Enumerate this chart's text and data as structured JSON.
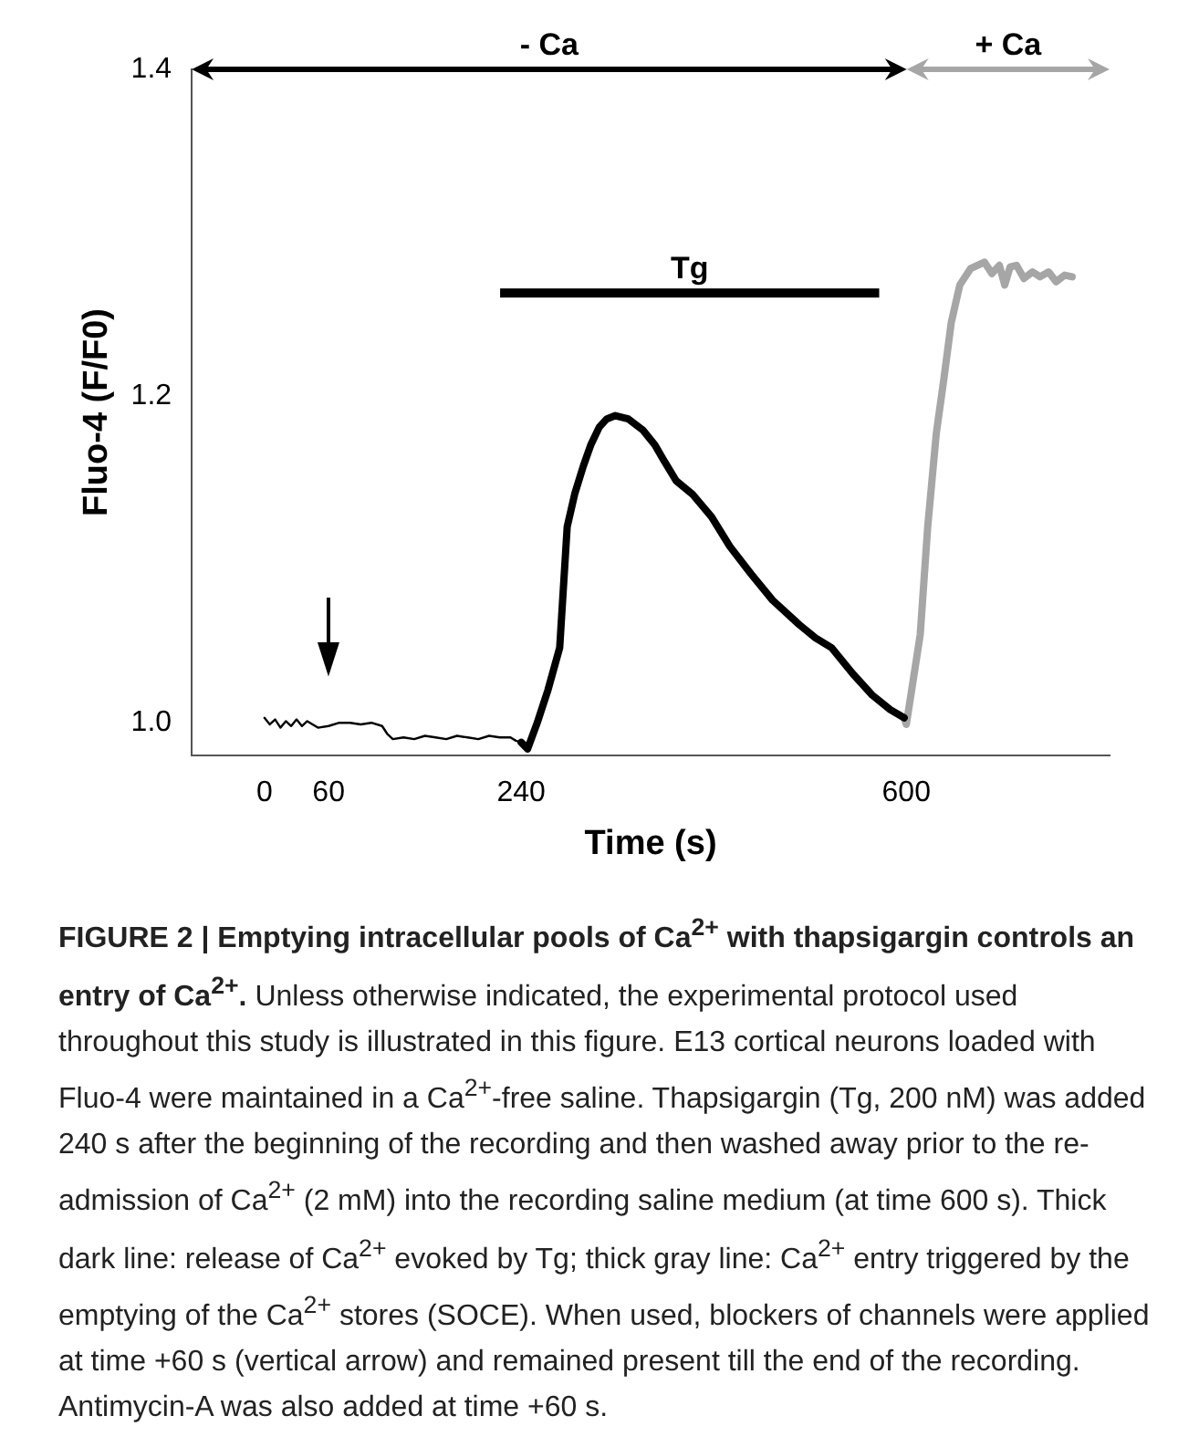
{
  "chart_data": {
    "type": "line",
    "title": "FIGURE 2 | Emptying intracellular pools of Ca$^{2+}$ with thapsigargin controls an entry of Ca$^{2+}$.",
    "xlabel": "Time (s)",
    "ylabel": "Fluo-4 (F/F0)",
    "xlim": [
      -68,
      790
    ],
    "xticks": [
      0,
      60,
      240,
      600
    ],
    "ylim": [
      0.98,
      1.4
    ],
    "yticks": [
      {
        "value": 1.0,
        "label": "1.0"
      },
      {
        "value": 1.2,
        "label": "1.2"
      },
      {
        "value": 1.4,
        "label": "1.4"
      }
    ],
    "grid": false,
    "legend": false,
    "marker": "none",
    "line_style": "solid",
    "series": [
      {
        "color": "#000000",
        "x": [
          0,
          5,
          10,
          15,
          20,
          25,
          30,
          35,
          40,
          50,
          60,
          70,
          80,
          90,
          100,
          110,
          115,
          120,
          130,
          140,
          150,
          160,
          170,
          180,
          190,
          200,
          210,
          220,
          230,
          235,
          240
        ],
        "values": [
          1.003,
          0.999,
          1.002,
          0.997,
          1.001,
          0.998,
          1.002,
          0.998,
          1.001,
          0.997,
          0.998,
          1.0,
          1.0,
          0.999,
          1.0,
          0.998,
          0.993,
          0.99,
          0.991,
          0.99,
          0.992,
          0.991,
          0.99,
          0.992,
          0.991,
          0.99,
          0.992,
          0.991,
          0.991,
          0.989,
          0.988
        ]
      },
      {
        "color": "#000000",
        "x": [
          240,
          246,
          255,
          265,
          276,
          283,
          290,
          298,
          305,
          313,
          320,
          328,
          340,
          354,
          365,
          373,
          385,
          400,
          418,
          435,
          455,
          475,
          500,
          515,
          530,
          550,
          568,
          585,
          598
        ],
        "values": [
          0.988,
          0.984,
          1.0,
          1.02,
          1.046,
          1.12,
          1.14,
          1.157,
          1.17,
          1.181,
          1.186,
          1.188,
          1.186,
          1.179,
          1.17,
          1.161,
          1.148,
          1.14,
          1.126,
          1.108,
          1.091,
          1.075,
          1.06,
          1.052,
          1.046,
          1.03,
          1.017,
          1.008,
          1.003
        ]
      },
      {
        "color": "#a6a6a6",
        "x": [
          598,
          600,
          605,
          613,
          620,
          628,
          635,
          642,
          650,
          660,
          673,
          680,
          687,
          692,
          697,
          703,
          710,
          718,
          725,
          733,
          740,
          748,
          755
        ],
        "values": [
          1.003,
          0.999,
          1.02,
          1.054,
          1.12,
          1.177,
          1.21,
          1.245,
          1.268,
          1.278,
          1.282,
          1.275,
          1.28,
          1.268,
          1.279,
          1.28,
          1.272,
          1.276,
          1.273,
          1.276,
          1.27,
          1.274,
          1.273
        ]
      }
    ],
    "annotations": [
      "- Ca",
      "+ Ca",
      "Tg",
      "Unless otherwise indicated, the experimental protocol used throughout this study is illustrated in this figure. E13 cortical neurons loaded with Fluo-4 were maintained in a Ca$^{2+}$-free saline. Thapsigargin (Tg, 200 nM) was added 240 s after the beginning of the recording and then washed away prior to the re-admission of Ca$^{2+}$ (2 mM) into the recording saline medium (at time 600 s). Thick dark line: release of Ca$^{2+}$ evoked by Tg; thick gray line: Ca$^{2+}$ entry triggered by the emptying of the Ca$^{2+}$ stores (SOCE). When used, blockers of channels were applied at time +60 s (vertical arrow) and remained present till the end of the recording. Antimycin-A was also added at time +60 s."
    ]
  }
}
